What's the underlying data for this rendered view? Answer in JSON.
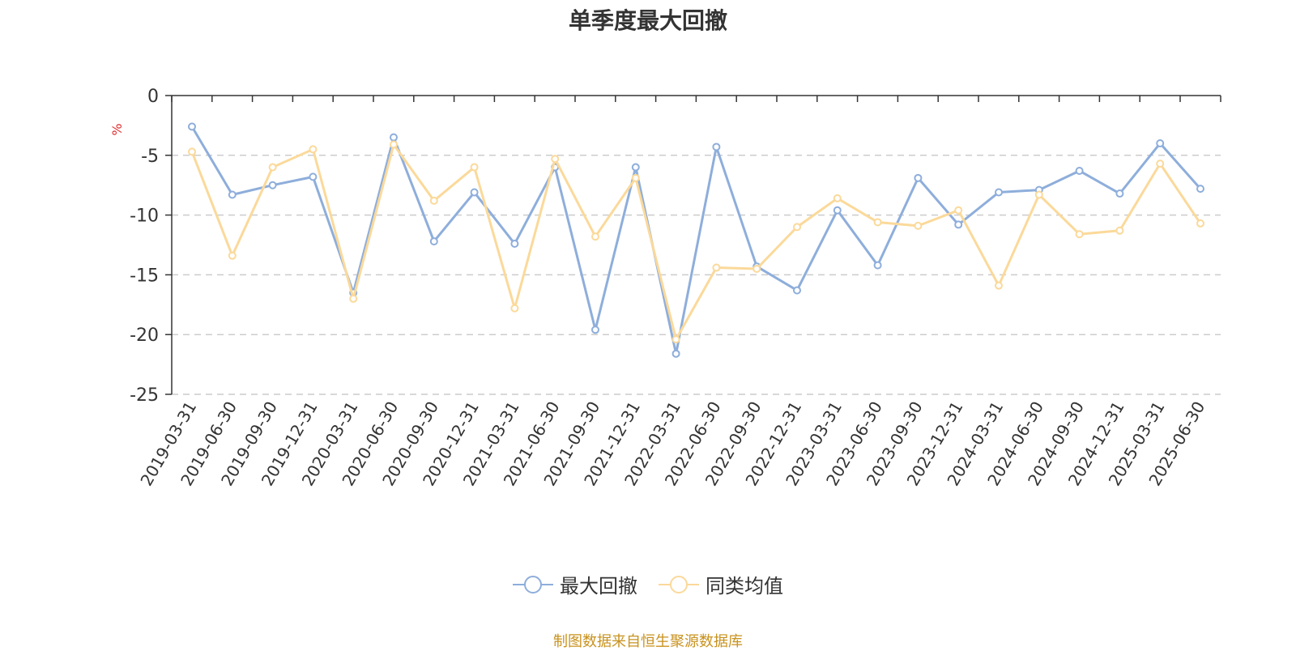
{
  "chart_data": {
    "type": "line",
    "title": "单季度最大回撤",
    "ylabel": "%",
    "xlabel": "",
    "ylim": [
      -25,
      0
    ],
    "yticks": [
      0,
      -5,
      -10,
      -15,
      -20,
      -25
    ],
    "grid": true,
    "legend_position": "bottom-center",
    "categories": [
      "2019-03-31",
      "2019-06-30",
      "2019-09-30",
      "2019-12-31",
      "2020-03-31",
      "2020-06-30",
      "2020-09-30",
      "2020-12-31",
      "2021-03-31",
      "2021-06-30",
      "2021-09-30",
      "2021-12-31",
      "2022-03-31",
      "2022-06-30",
      "2022-09-30",
      "2022-12-31",
      "2023-03-31",
      "2023-06-30",
      "2023-09-30",
      "2023-12-31",
      "2024-03-31",
      "2024-06-30",
      "2024-09-30",
      "2024-12-31",
      "2025-03-31",
      "2025-06-30"
    ],
    "series": [
      {
        "name": "最大回撤",
        "color": "#8eaedb",
        "values": [
          -2.6,
          -8.3,
          -7.5,
          -6.8,
          -16.5,
          -3.5,
          -12.2,
          -8.1,
          -12.4,
          -6.0,
          -19.6,
          -6.0,
          -21.6,
          -4.3,
          -14.3,
          -16.3,
          -9.6,
          -14.2,
          -6.9,
          -10.8,
          -8.1,
          -7.9,
          -6.3,
          -8.2,
          -4.0,
          -7.8
        ]
      },
      {
        "name": "同类均值",
        "color": "#fbd99a",
        "values": [
          -4.7,
          -13.4,
          -6.0,
          -4.5,
          -17.0,
          -4.1,
          -8.8,
          -6.0,
          -17.8,
          -5.3,
          -11.8,
          -6.9,
          -20.4,
          -14.4,
          -14.5,
          -11.0,
          -8.6,
          -10.6,
          -10.9,
          -9.6,
          -15.9,
          -8.3,
          -11.6,
          -11.3,
          -5.7,
          -10.7
        ]
      }
    ]
  },
  "source_note": "制图数据来自恒生聚源数据库"
}
